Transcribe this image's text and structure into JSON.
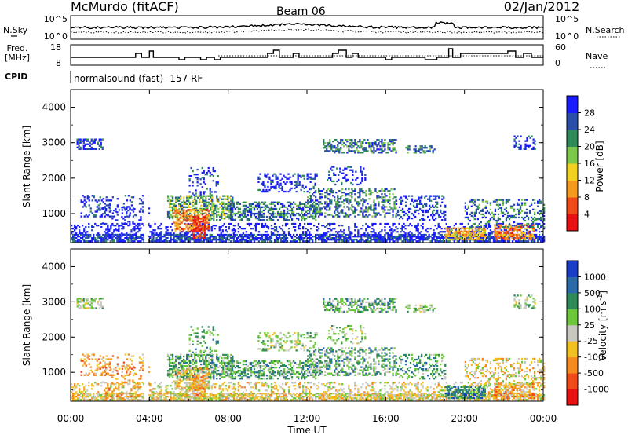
{
  "header": {
    "station": "McMurdo (fitACF)",
    "beam": "Beam 06",
    "date": "02/Jan/2012"
  },
  "noise_panel": {
    "left_label": "N.Sky",
    "right_label": "N.Search",
    "left_ticks": [
      "10^5",
      "10^0"
    ],
    "right_ticks": [
      "10^5",
      "10^0"
    ]
  },
  "freq_panel": {
    "left_label_1": "Freq.",
    "left_label_2": "[MHz]",
    "right_label": "Nave",
    "left_ticks": [
      "18",
      "8"
    ],
    "right_ticks": [
      "60",
      "0"
    ]
  },
  "cpid": {
    "label": "CPID",
    "value": "normalsound (fast) -157 RF"
  },
  "chart_data": [
    {
      "type": "heatmap",
      "name": "power",
      "ylabel": "Slant Range [km]",
      "ylim": [
        180,
        4500
      ],
      "yticks": [
        "4000",
        "3000",
        "2000",
        "1000"
      ],
      "ytick_values": [
        4000,
        3000,
        2000,
        1000
      ],
      "colorbar_label": "Power [dB]",
      "colorbar_ticks": [
        "28",
        "24",
        "20",
        "16",
        "12",
        "8",
        "4"
      ],
      "colorbar_colors": [
        "#1a1aff",
        "#2a4fa8",
        "#2e8b57",
        "#7cc84a",
        "#f2d020",
        "#f59a1e",
        "#f04a1a",
        "#e81010"
      ]
    },
    {
      "type": "heatmap",
      "name": "velocity",
      "ylabel": "Slant Range [km]",
      "ylim": [
        180,
        4500
      ],
      "yticks": [
        "4000",
        "3000",
        "2000",
        "1000"
      ],
      "ytick_values": [
        4000,
        3000,
        2000,
        1000
      ],
      "colorbar_label": "Velocity [m s",
      "colorbar_label_sup": "-1",
      "colorbar_label_end": "]",
      "colorbar_ticks": [
        "1000",
        "500",
        "100",
        "25",
        "-25",
        "-100",
        "-500",
        "-1000"
      ],
      "colorbar_colors": [
        "#1a3dc8",
        "#2a6aa8",
        "#2e8b57",
        "#6cc83a",
        "#c8c8c0",
        "#f2c020",
        "#f58a1e",
        "#f04a1a",
        "#e81010"
      ]
    }
  ],
  "xaxis": {
    "label": "Time UT",
    "ticks": [
      "00:00",
      "04:00",
      "08:00",
      "12:00",
      "16:00",
      "20:00",
      "00:00"
    ],
    "tick_hours": [
      0,
      4,
      8,
      12,
      16,
      20,
      24
    ]
  }
}
